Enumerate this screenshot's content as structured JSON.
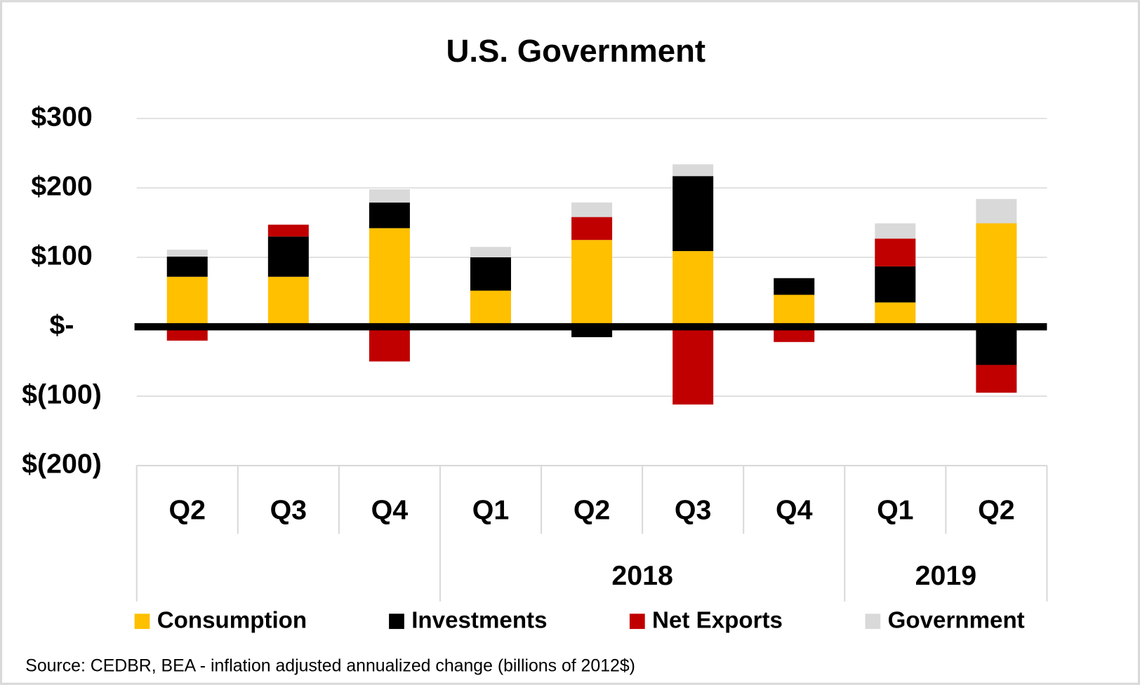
{
  "chart_data": {
    "type": "stacked_bar",
    "title": "U.S. Government",
    "categories": [
      "Q2",
      "Q3",
      "Q4",
      "Q1",
      "Q2",
      "Q3",
      "Q4",
      "Q1",
      "Q2"
    ],
    "groups": [
      {
        "label": null,
        "span": 3
      },
      {
        "label": "2018",
        "span": 4
      },
      {
        "label": "2019",
        "span": 2
      }
    ],
    "series": [
      {
        "name": "Consumption",
        "color": "#FFC000",
        "values": [
          72,
          72,
          142,
          52,
          125,
          109,
          46,
          35,
          149
        ]
      },
      {
        "name": "Investments",
        "color": "#000000",
        "values": [
          29,
          58,
          37,
          48,
          -15,
          108,
          24,
          52,
          -55
        ]
      },
      {
        "name": "Net Exports",
        "color": "#C00000",
        "values": [
          -20,
          17,
          -50,
          0,
          33,
          -112,
          -22,
          40,
          -40
        ]
      },
      {
        "name": "Government",
        "color": "#D9D9D9",
        "values": [
          10,
          0,
          19,
          15,
          21,
          17,
          0,
          22,
          35
        ]
      }
    ],
    "ylim": [
      -200,
      300
    ],
    "yticks": [
      {
        "value": 300,
        "label": "$300"
      },
      {
        "value": 200,
        "label": "$200"
      },
      {
        "value": 100,
        "label": "$100"
      },
      {
        "value": 0,
        "label": "$-"
      },
      {
        "value": -100,
        "label": "$(100)"
      },
      {
        "value": -200,
        "label": "$(200)"
      }
    ],
    "grid": true,
    "legend": "bottom",
    "source": "Source: CEDBR, BEA - inflation adjusted annualized change (billions of 2012$)"
  }
}
